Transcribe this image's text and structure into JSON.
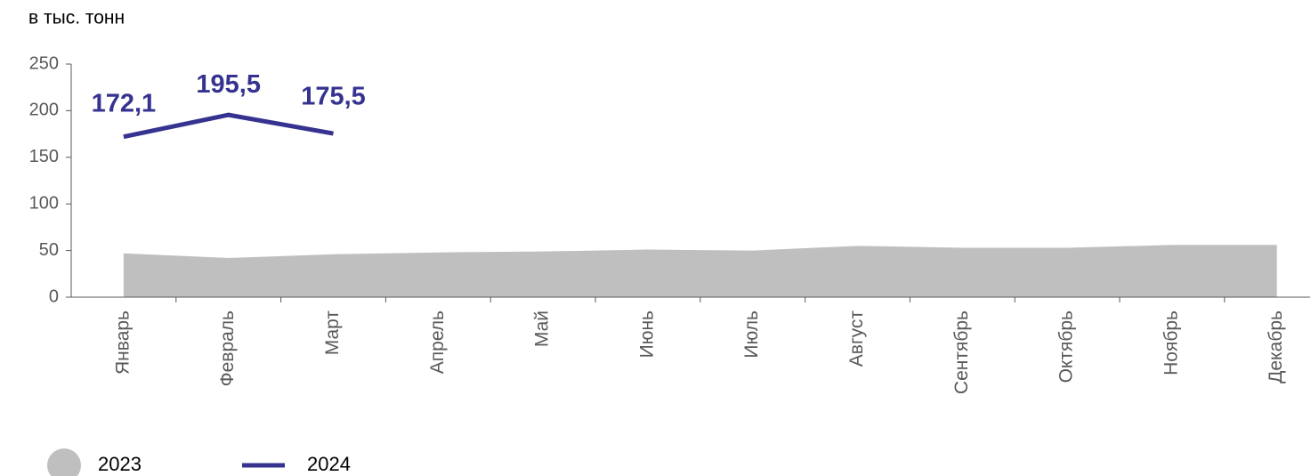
{
  "chart_data": {
    "type": "line",
    "title": "в тыс. тонн",
    "categories": [
      "Январь",
      "Февраль",
      "Март",
      "Апрель",
      "Май",
      "Июнь",
      "Июль",
      "Август",
      "Сентябрь",
      "Октябрь",
      "Ноябрь",
      "Декабрь"
    ],
    "series": [
      {
        "name": "2023",
        "color": "#bfbfbf",
        "kind": "area",
        "values": [
          47,
          42,
          46,
          48,
          49,
          51,
          50,
          55,
          53,
          53,
          56,
          56
        ]
      },
      {
        "name": "2024",
        "color": "#35338f",
        "kind": "line",
        "values": [
          172.1,
          195.5,
          175.5,
          null,
          null,
          null,
          null,
          null,
          null,
          null,
          null,
          null
        ],
        "value_labels": [
          "172,1",
          "195,5",
          "175,5",
          null,
          null,
          null,
          null,
          null,
          null,
          null,
          null,
          null
        ]
      }
    ],
    "ylim": [
      0,
      250
    ],
    "yticks": [
      0,
      50,
      100,
      150,
      200,
      250
    ],
    "grid": false
  }
}
